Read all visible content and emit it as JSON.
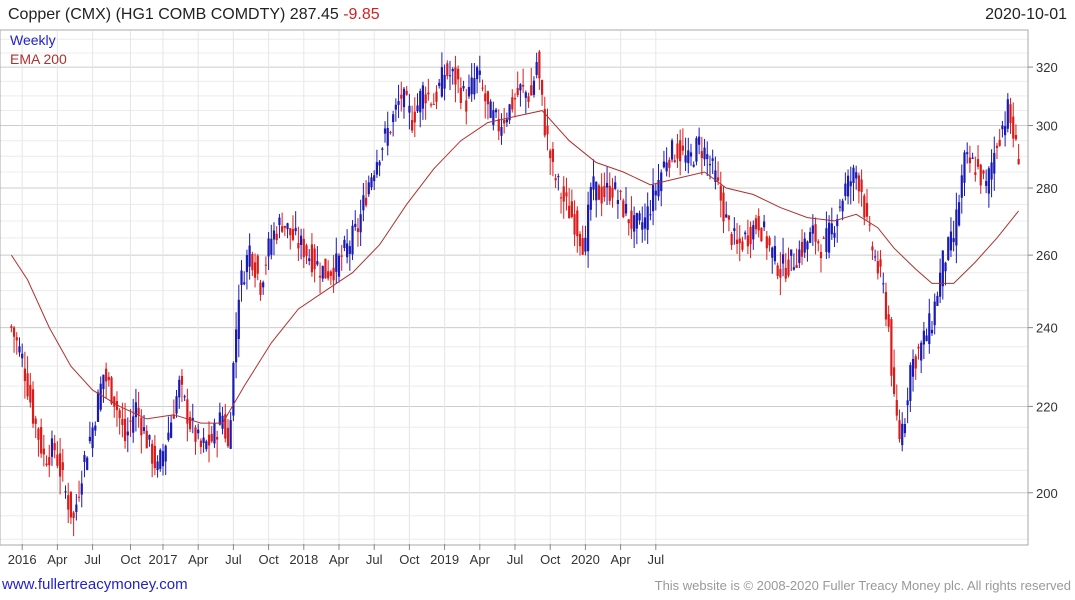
{
  "header": {
    "title": "Copper (CMX) (HG1 COMB COMDTY) 287.45",
    "change": "-9.85",
    "date": "2020-10-01"
  },
  "legend": {
    "period": "Weekly",
    "ema": "EMA 200"
  },
  "footer": {
    "site": "www.fullertreacymoney.com",
    "copyright": "This website is © 2008-2020 Fuller Treacy Money plc. All rights reserved"
  },
  "colors": {
    "up": "#1a1ab4",
    "down": "#dd1a1a",
    "ema": "#b03030",
    "grid": "#dddddd"
  },
  "chart_data": {
    "type": "candlestick",
    "title": "Copper (CMX) (HG1 COMB COMDTY)",
    "period": "Weekly",
    "last": 287.45,
    "change": -9.85,
    "y_scale": "log",
    "ylim": [
      189,
      333
    ],
    "y_ticks": [
      200,
      220,
      240,
      260,
      280,
      300,
      320
    ],
    "x_ticks": [
      "2016",
      "Apr",
      "Jul",
      "Oct",
      "2017",
      "Apr",
      "Jul",
      "Oct",
      "2018",
      "Apr",
      "Jul",
      "Oct",
      "2019",
      "Apr",
      "Jul",
      "Oct",
      "2020",
      "Apr",
      "Jul"
    ],
    "close_series": [
      {
        "week": 0,
        "close": 240
      },
      {
        "week": 4,
        "close": 232
      },
      {
        "week": 8,
        "close": 218
      },
      {
        "week": 12,
        "close": 208
      },
      {
        "week": 16,
        "close": 210
      },
      {
        "week": 20,
        "close": 200
      },
      {
        "week": 23,
        "close": 194
      },
      {
        "week": 26,
        "close": 205
      },
      {
        "week": 30,
        "close": 215
      },
      {
        "week": 34,
        "close": 228
      },
      {
        "week": 38,
        "close": 222
      },
      {
        "week": 42,
        "close": 212
      },
      {
        "week": 46,
        "close": 220
      },
      {
        "week": 50,
        "close": 212
      },
      {
        "week": 54,
        "close": 205
      },
      {
        "week": 58,
        "close": 214
      },
      {
        "week": 62,
        "close": 225
      },
      {
        "week": 66,
        "close": 216
      },
      {
        "week": 70,
        "close": 210
      },
      {
        "week": 74,
        "close": 212
      },
      {
        "week": 78,
        "close": 218
      },
      {
        "week": 80,
        "close": 210
      },
      {
        "week": 82,
        "close": 230
      },
      {
        "week": 84,
        "close": 250
      },
      {
        "week": 88,
        "close": 262
      },
      {
        "week": 92,
        "close": 252
      },
      {
        "week": 96,
        "close": 265
      },
      {
        "week": 100,
        "close": 270
      },
      {
        "week": 104,
        "close": 265
      },
      {
        "week": 108,
        "close": 262
      },
      {
        "week": 112,
        "close": 258
      },
      {
        "week": 116,
        "close": 255
      },
      {
        "week": 120,
        "close": 257
      },
      {
        "week": 124,
        "close": 262
      },
      {
        "week": 128,
        "close": 268
      },
      {
        "week": 132,
        "close": 282
      },
      {
        "week": 136,
        "close": 292
      },
      {
        "week": 140,
        "close": 300
      },
      {
        "week": 144,
        "close": 310
      },
      {
        "week": 148,
        "close": 302
      },
      {
        "week": 152,
        "close": 312
      },
      {
        "week": 156,
        "close": 308
      },
      {
        "week": 160,
        "close": 318
      },
      {
        "week": 164,
        "close": 316
      },
      {
        "week": 168,
        "close": 308
      },
      {
        "week": 172,
        "close": 318
      },
      {
        "week": 176,
        "close": 305
      },
      {
        "week": 180,
        "close": 300
      },
      {
        "week": 184,
        "close": 306
      },
      {
        "week": 188,
        "close": 312
      },
      {
        "week": 192,
        "close": 310
      },
      {
        "week": 194,
        "close": 322
      },
      {
        "week": 197,
        "close": 300
      },
      {
        "week": 200,
        "close": 285
      },
      {
        "week": 204,
        "close": 276
      },
      {
        "week": 208,
        "close": 270
      },
      {
        "week": 212,
        "close": 262
      },
      {
        "week": 214,
        "close": 280
      },
      {
        "week": 218,
        "close": 278
      },
      {
        "week": 222,
        "close": 280
      },
      {
        "week": 226,
        "close": 274
      },
      {
        "week": 230,
        "close": 268
      },
      {
        "week": 234,
        "close": 270
      },
      {
        "week": 238,
        "close": 280
      },
      {
        "week": 242,
        "close": 290
      },
      {
        "week": 246,
        "close": 292
      },
      {
        "week": 250,
        "close": 288
      },
      {
        "week": 254,
        "close": 294
      },
      {
        "week": 257,
        "close": 290
      },
      {
        "week": 260,
        "close": 283
      },
      {
        "week": 264,
        "close": 270
      },
      {
        "week": 268,
        "close": 262
      },
      {
        "week": 272,
        "close": 266
      },
      {
        "week": 276,
        "close": 270
      },
      {
        "week": 280,
        "close": 262
      },
      {
        "week": 284,
        "close": 256
      },
      {
        "week": 288,
        "close": 258
      },
      {
        "week": 292,
        "close": 262
      },
      {
        "week": 296,
        "close": 266
      },
      {
        "week": 300,
        "close": 262
      },
      {
        "week": 304,
        "close": 270
      },
      {
        "week": 308,
        "close": 280
      },
      {
        "week": 312,
        "close": 285
      },
      {
        "week": 314,
        "close": 280
      },
      {
        "week": 316,
        "close": 268
      },
      {
        "week": 318,
        "close": 262
      },
      {
        "week": 320,
        "close": 256
      },
      {
        "week": 322,
        "close": 250
      },
      {
        "week": 324,
        "close": 240
      },
      {
        "week": 326,
        "close": 220
      },
      {
        "week": 328,
        "close": 213
      },
      {
        "week": 330,
        "close": 218
      },
      {
        "week": 332,
        "close": 230
      },
      {
        "week": 336,
        "close": 235
      },
      {
        "week": 340,
        "close": 242
      },
      {
        "week": 344,
        "close": 258
      },
      {
        "week": 348,
        "close": 265
      },
      {
        "week": 352,
        "close": 288
      },
      {
        "week": 356,
        "close": 287
      },
      {
        "week": 360,
        "close": 280
      },
      {
        "week": 364,
        "close": 295
      },
      {
        "week": 368,
        "close": 305
      },
      {
        "week": 370,
        "close": 297
      },
      {
        "week": 372,
        "close": 287.45
      }
    ],
    "ema_200": [
      {
        "week": 0,
        "value": 260
      },
      {
        "week": 6,
        "value": 253
      },
      {
        "week": 14,
        "value": 240
      },
      {
        "week": 22,
        "value": 230
      },
      {
        "week": 30,
        "value": 224
      },
      {
        "week": 40,
        "value": 220
      },
      {
        "week": 50,
        "value": 217
      },
      {
        "week": 60,
        "value": 218
      },
      {
        "week": 70,
        "value": 216
      },
      {
        "week": 78,
        "value": 216
      },
      {
        "week": 86,
        "value": 225
      },
      {
        "week": 96,
        "value": 236
      },
      {
        "week": 106,
        "value": 245
      },
      {
        "week": 116,
        "value": 250
      },
      {
        "week": 126,
        "value": 255
      },
      {
        "week": 136,
        "value": 263
      },
      {
        "week": 146,
        "value": 275
      },
      {
        "week": 156,
        "value": 286
      },
      {
        "week": 166,
        "value": 295
      },
      {
        "week": 176,
        "value": 301
      },
      {
        "week": 186,
        "value": 303
      },
      {
        "week": 196,
        "value": 305
      },
      {
        "week": 206,
        "value": 295
      },
      {
        "week": 216,
        "value": 288
      },
      {
        "week": 226,
        "value": 285
      },
      {
        "week": 236,
        "value": 281
      },
      {
        "week": 246,
        "value": 283
      },
      {
        "week": 256,
        "value": 285
      },
      {
        "week": 264,
        "value": 280
      },
      {
        "week": 274,
        "value": 278
      },
      {
        "week": 284,
        "value": 274
      },
      {
        "week": 294,
        "value": 271
      },
      {
        "week": 304,
        "value": 270
      },
      {
        "week": 312,
        "value": 272
      },
      {
        "week": 320,
        "value": 268
      },
      {
        "week": 326,
        "value": 262
      },
      {
        "week": 334,
        "value": 256
      },
      {
        "week": 340,
        "value": 252
      },
      {
        "week": 348,
        "value": 252
      },
      {
        "week": 356,
        "value": 258
      },
      {
        "week": 364,
        "value": 265
      },
      {
        "week": 372,
        "value": 273
      }
    ]
  }
}
